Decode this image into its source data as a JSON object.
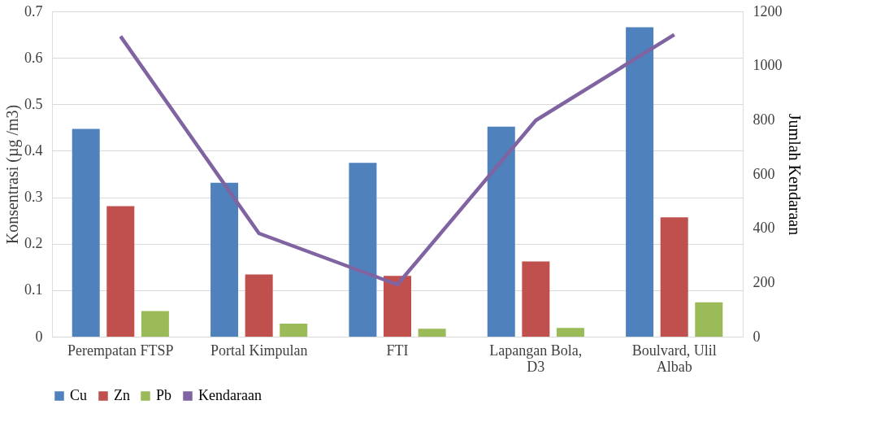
{
  "chart_data": {
    "type": "bar",
    "categories": [
      "Perempatan FTSP",
      "Portal Kimpulan",
      "FTI",
      "Lapangan Bola,\nD3",
      "Boulvard, Ulil\nAlbab"
    ],
    "series": [
      {
        "name": "Cu",
        "color": "#4f81bd",
        "values": [
          0.447,
          0.331,
          0.374,
          0.452,
          0.666
        ]
      },
      {
        "name": "Zn",
        "color": "#c0504d",
        "values": [
          0.281,
          0.134,
          0.131,
          0.162,
          0.257
        ]
      },
      {
        "name": "Pb",
        "color": "#9bbb59",
        "values": [
          0.055,
          0.028,
          0.017,
          0.019,
          0.074
        ]
      },
      {
        "name": "Kendaraan",
        "color": "#8064a2",
        "type": "line",
        "axis": "y2",
        "values": [
          1108,
          381,
          192,
          798,
          1114
        ]
      }
    ],
    "ylabel": "Konsentrasi (µg /m3)",
    "y2label": "Jumlah Kendaraan",
    "ylim": [
      0,
      0.7
    ],
    "yticks": [
      0,
      0.1,
      0.2,
      0.3,
      0.4,
      0.5,
      0.6,
      0.7
    ],
    "y2lim": [
      0,
      1200
    ],
    "y2ticks": [
      0,
      200,
      400,
      600,
      800,
      1000,
      1200
    ],
    "grid": "y",
    "legend": "bottom",
    "line_style": "solid",
    "marker": "none"
  }
}
